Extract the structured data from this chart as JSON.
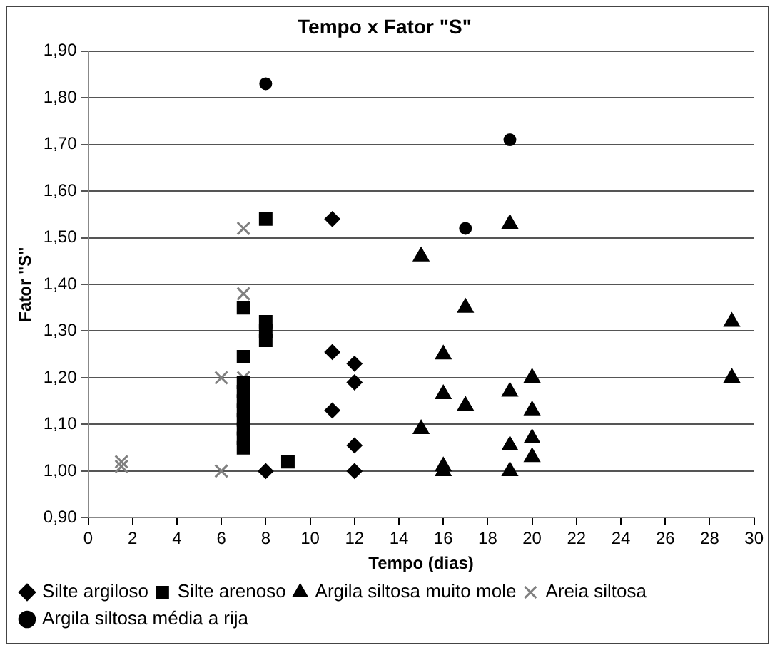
{
  "chart_data": {
    "type": "scatter",
    "title": "Tempo x Fator \"S\"",
    "xlabel": "Tempo (dias)",
    "ylabel": "Fator \"S\"",
    "xlim": [
      0,
      30
    ],
    "xticks": [
      0,
      2,
      4,
      6,
      8,
      10,
      12,
      14,
      16,
      18,
      20,
      22,
      24,
      26,
      28,
      30
    ],
    "ylim": [
      0.9,
      1.9
    ],
    "yticks": [
      {
        "value": 0.9,
        "label": "0,90"
      },
      {
        "value": 1.0,
        "label": "1,00"
      },
      {
        "value": 1.1,
        "label": "1,10"
      },
      {
        "value": 1.2,
        "label": "1,20"
      },
      {
        "value": 1.3,
        "label": "1,30"
      },
      {
        "value": 1.4,
        "label": "1,40"
      },
      {
        "value": 1.5,
        "label": "1,50"
      },
      {
        "value": 1.6,
        "label": "1,60"
      },
      {
        "value": 1.7,
        "label": "1,70"
      },
      {
        "value": 1.8,
        "label": "1,80"
      },
      {
        "value": 1.9,
        "label": "1,90"
      }
    ],
    "grid": "y",
    "legend": "bottom",
    "series": [
      {
        "name": "Silte argiloso",
        "color": "#000000",
        "marker": "diamond",
        "x": [
          8,
          11,
          11,
          11,
          12,
          12,
          12,
          12
        ],
        "values": [
          1.0,
          1.54,
          1.255,
          1.13,
          1.23,
          1.19,
          1.055,
          1.0
        ]
      },
      {
        "name": "Silte arenoso",
        "color": "#000000",
        "marker": "square",
        "x": [
          8,
          7,
          8,
          8,
          8,
          7,
          7,
          7,
          7,
          7,
          7,
          7,
          7,
          7,
          9
        ],
        "values": [
          1.54,
          1.35,
          1.32,
          1.3,
          1.28,
          1.245,
          1.19,
          1.17,
          1.15,
          1.13,
          1.11,
          1.09,
          1.07,
          1.05,
          1.02
        ]
      },
      {
        "name": "Argila siltosa muito mole",
        "color": "#000000",
        "marker": "triangle",
        "x": [
          15,
          15,
          16,
          16,
          16,
          16,
          17,
          17,
          19,
          19,
          19,
          19,
          20,
          20,
          20,
          20,
          29,
          29
        ],
        "values": [
          1.46,
          1.09,
          1.25,
          1.165,
          1.01,
          1.0,
          1.35,
          1.14,
          1.53,
          1.17,
          1.055,
          1.0,
          1.2,
          1.13,
          1.07,
          1.03,
          1.32,
          1.2
        ]
      },
      {
        "name": "Areia siltosa",
        "color": "#808080",
        "marker": "cross",
        "x": [
          1.5,
          1.5,
          6,
          6,
          7,
          7,
          7
        ],
        "values": [
          1.02,
          1.01,
          1.2,
          1.0,
          1.52,
          1.38,
          1.2
        ]
      },
      {
        "name": "Argila siltosa média a rija",
        "color": "#000000",
        "marker": "circle",
        "x": [
          8,
          19,
          17
        ],
        "values": [
          1.83,
          1.71,
          1.52
        ]
      }
    ]
  }
}
